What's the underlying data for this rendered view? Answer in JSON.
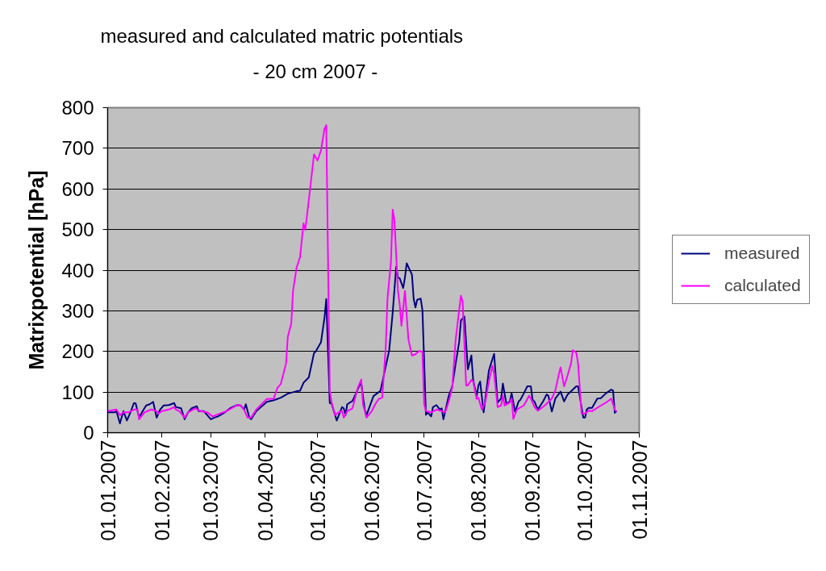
{
  "chart_data": {
    "type": "line",
    "title": "measured and calculated matric potentials",
    "subtitle": "-  20 cm 2007   -",
    "ylabel": "Matrixpotential [hPa]",
    "xlim": [
      "2007-01-01",
      "2007-11-01"
    ],
    "xticks": [
      {
        "value": "2007-01-01",
        "label": "01.01.2007"
      },
      {
        "value": "2007-02-01",
        "label": "01.02.2007"
      },
      {
        "value": "2007-03-01",
        "label": "01.03.2007"
      },
      {
        "value": "2007-04-01",
        "label": "01.04.2007"
      },
      {
        "value": "2007-05-01",
        "label": "01.05.2007"
      },
      {
        "value": "2007-06-01",
        "label": "01.06.2007"
      },
      {
        "value": "2007-07-01",
        "label": "01.07.2007"
      },
      {
        "value": "2007-08-01",
        "label": "01.08.2007"
      },
      {
        "value": "2007-09-01",
        "label": "01.09.2007"
      },
      {
        "value": "2007-10-01",
        "label": "01.10.2007"
      },
      {
        "value": "2007-11-01",
        "label": "01.11.2007"
      }
    ],
    "ylim": [
      0,
      800
    ],
    "yticks": [
      0,
      100,
      200,
      300,
      400,
      500,
      600,
      700,
      800
    ],
    "grid": "y",
    "legend": "right",
    "marker": "none",
    "line_style": "solid",
    "series": [
      {
        "name": "measured",
        "color": "#000080",
        "x": [
          "2007-01-01",
          "2007-01-05",
          "2007-01-06",
          "2007-01-08",
          "2007-01-10",
          "2007-01-12",
          "2007-01-14",
          "2007-01-16",
          "2007-01-17",
          "2007-01-19",
          "2007-01-21",
          "2007-01-23",
          "2007-01-25",
          "2007-01-27",
          "2007-01-29",
          "2007-01-31",
          "2007-02-02",
          "2007-02-05",
          "2007-02-08",
          "2007-02-09",
          "2007-02-12",
          "2007-02-14",
          "2007-02-16",
          "2007-02-18",
          "2007-02-21",
          "2007-02-22",
          "2007-02-25",
          "2007-02-27",
          "2007-03-01",
          "2007-03-03",
          "2007-03-05",
          "2007-03-09",
          "2007-03-12",
          "2007-03-16",
          "2007-03-18",
          "2007-03-20",
          "2007-03-21",
          "2007-03-23",
          "2007-03-24",
          "2007-03-27",
          "2007-04-02",
          "2007-04-06",
          "2007-04-10",
          "2007-04-14",
          "2007-04-19",
          "2007-04-21",
          "2007-04-23",
          "2007-04-26",
          "2007-04-29",
          "2007-04-30",
          "2007-05-03",
          "2007-05-05",
          "2007-05-06",
          "2007-05-08",
          "2007-05-09",
          "2007-05-12",
          "2007-05-15",
          "2007-05-16",
          "2007-05-17",
          "2007-05-18",
          "2007-05-21",
          "2007-05-25",
          "2007-05-26",
          "2007-05-28",
          "2007-05-29",
          "2007-06-02",
          "2007-06-06",
          "2007-06-08",
          "2007-06-11",
          "2007-06-13",
          "2007-06-15",
          "2007-06-16",
          "2007-06-17",
          "2007-06-19",
          "2007-06-20",
          "2007-06-21",
          "2007-06-24",
          "2007-06-25",
          "2007-06-26",
          "2007-06-27",
          "2007-06-29",
          "2007-06-30",
          "2007-07-02",
          "2007-07-03",
          "2007-07-05",
          "2007-07-06",
          "2007-07-08",
          "2007-07-10",
          "2007-07-11",
          "2007-07-12",
          "2007-07-15",
          "2007-07-17",
          "2007-07-19",
          "2007-07-21",
          "2007-07-22",
          "2007-07-24",
          "2007-07-26",
          "2007-07-28",
          "2007-07-29",
          "2007-07-31",
          "2007-08-01",
          "2007-08-02",
          "2007-08-04",
          "2007-08-07",
          "2007-08-08",
          "2007-08-10",
          "2007-08-12",
          "2007-08-14",
          "2007-08-15",
          "2007-08-17",
          "2007-08-19",
          "2007-08-20",
          "2007-08-22",
          "2007-08-24",
          "2007-08-25",
          "2007-08-27",
          "2007-08-29",
          "2007-08-31",
          "2007-09-01",
          "2007-09-02",
          "2007-09-04",
          "2007-09-07",
          "2007-09-09",
          "2007-09-10",
          "2007-09-12",
          "2007-09-14",
          "2007-09-17",
          "2007-09-19",
          "2007-09-21",
          "2007-09-26",
          "2007-09-27",
          "2007-09-30",
          "2007-10-01",
          "2007-10-02",
          "2007-10-03",
          "2007-10-05",
          "2007-10-08",
          "2007-10-10",
          "2007-10-13",
          "2007-10-16",
          "2007-10-17",
          "2007-10-18",
          "2007-10-19"
        ],
        "values": [
          50,
          50,
          53,
          23,
          53,
          30,
          50,
          73,
          72,
          37,
          53,
          67,
          70,
          76,
          37,
          57,
          67,
          68,
          73,
          63,
          60,
          33,
          50,
          60,
          65,
          53,
          53,
          43,
          33,
          37,
          40,
          50,
          60,
          68,
          67,
          57,
          70,
          37,
          33,
          53,
          76,
          80,
          86,
          96,
          102,
          103,
          123,
          136,
          196,
          200,
          223,
          283,
          329,
          73,
          72,
          30,
          63,
          60,
          43,
          70,
          78,
          116,
          123,
          57,
          43,
          90,
          103,
          143,
          203,
          296,
          409,
          382,
          380,
          356,
          382,
          417,
          389,
          329,
          308,
          327,
          330,
          302,
          44,
          50,
          40,
          63,
          68,
          57,
          60,
          33,
          90,
          113,
          170,
          223,
          276,
          286,
          156,
          190,
          130,
          90,
          116,
          126,
          50,
          153,
          167,
          194,
          74,
          84,
          121,
          71,
          77,
          97,
          51,
          77,
          81,
          97,
          114,
          114,
          81,
          77,
          57,
          77,
          94,
          91,
          52,
          84,
          101,
          77,
          94,
          114,
          114,
          37,
          37,
          57,
          61,
          61,
          84,
          85,
          97,
          106,
          104,
          49,
          53
        ]
      },
      {
        "name": "calculated",
        "color": "#ff00ff",
        "x": [
          "2007-01-01",
          "2007-01-06",
          "2007-01-08",
          "2007-01-10",
          "2007-01-13",
          "2007-01-16",
          "2007-01-18",
          "2007-01-19",
          "2007-01-22",
          "2007-01-26",
          "2007-01-29",
          "2007-01-30",
          "2007-02-01",
          "2007-02-05",
          "2007-02-08",
          "2007-02-09",
          "2007-02-11",
          "2007-02-14",
          "2007-02-16",
          "2007-02-20",
          "2007-02-23",
          "2007-02-27",
          "2007-03-02",
          "2007-03-06",
          "2007-03-10",
          "2007-03-16",
          "2007-03-18",
          "2007-03-20",
          "2007-03-22",
          "2007-03-24",
          "2007-03-27",
          "2007-04-02",
          "2007-04-06",
          "2007-04-08",
          "2007-04-10",
          "2007-04-13",
          "2007-04-14",
          "2007-04-16",
          "2007-04-17",
          "2007-04-19",
          "2007-04-21",
          "2007-04-23",
          "2007-04-24",
          "2007-04-25",
          "2007-04-26",
          "2007-04-29",
          "2007-05-01",
          "2007-05-03",
          "2007-05-05",
          "2007-05-06",
          "2007-05-08",
          "2007-05-09",
          "2007-05-11",
          "2007-05-13",
          "2007-05-15",
          "2007-05-16",
          "2007-05-18",
          "2007-05-21",
          "2007-05-24",
          "2007-05-26",
          "2007-05-27",
          "2007-05-29",
          "2007-06-01",
          "2007-06-03",
          "2007-06-05",
          "2007-06-07",
          "2007-06-09",
          "2007-06-10",
          "2007-06-12",
          "2007-06-13",
          "2007-06-14",
          "2007-06-16",
          "2007-06-17",
          "2007-06-18",
          "2007-06-20",
          "2007-06-22",
          "2007-06-24",
          "2007-06-26",
          "2007-06-28",
          "2007-06-30",
          "2007-07-01",
          "2007-07-02",
          "2007-07-05",
          "2007-07-08",
          "2007-07-11",
          "2007-07-13",
          "2007-07-15",
          "2007-07-17",
          "2007-07-19",
          "2007-07-22",
          "2007-07-23",
          "2007-07-25",
          "2007-07-26",
          "2007-07-28",
          "2007-07-29",
          "2007-07-31",
          "2007-08-01",
          "2007-08-03",
          "2007-08-05",
          "2007-08-07",
          "2007-08-09",
          "2007-08-10",
          "2007-08-12",
          "2007-08-14",
          "2007-08-15",
          "2007-08-16",
          "2007-08-19",
          "2007-08-20",
          "2007-08-21",
          "2007-08-23",
          "2007-08-27",
          "2007-08-30",
          "2007-08-31",
          "2007-09-02",
          "2007-09-04",
          "2007-09-08",
          "2007-09-12",
          "2007-09-14",
          "2007-09-16",
          "2007-09-17",
          "2007-09-19",
          "2007-09-21",
          "2007-09-23",
          "2007-09-24",
          "2007-09-26",
          "2007-09-27",
          "2007-09-29",
          "2007-10-01",
          "2007-10-03",
          "2007-10-05",
          "2007-10-09",
          "2007-10-13",
          "2007-10-16",
          "2007-10-18",
          "2007-10-19"
        ],
        "values": [
          53,
          57,
          43,
          50,
          50,
          57,
          57,
          33,
          50,
          57,
          53,
          47,
          53,
          57,
          63,
          57,
          53,
          37,
          50,
          60,
          53,
          50,
          40,
          47,
          53,
          68,
          67,
          57,
          37,
          37,
          57,
          83,
          84,
          110,
          120,
          170,
          236,
          269,
          349,
          406,
          432,
          515,
          499,
          535,
          572,
          685,
          670,
          695,
          748,
          757,
          103,
          76,
          43,
          50,
          53,
          37,
          53,
          60,
          110,
          131,
          70,
          37,
          53,
          70,
          83,
          86,
          209,
          329,
          421,
          549,
          523,
          349,
          316,
          263,
          349,
          229,
          190,
          193,
          201,
          199,
          70,
          53,
          50,
          57,
          53,
          50,
          76,
          110,
          229,
          337,
          323,
          116,
          116,
          130,
          126,
          83,
          86,
          57,
          76,
          126,
          165,
          145,
          63,
          67,
          91,
          67,
          74,
          85,
          34,
          57,
          67,
          91,
          84,
          64,
          54,
          67,
          84,
          104,
          144,
          161,
          114,
          141,
          171,
          203,
          197,
          171,
          47,
          47,
          54,
          53,
          64,
          74,
          84,
          57,
          52
        ]
      }
    ]
  }
}
